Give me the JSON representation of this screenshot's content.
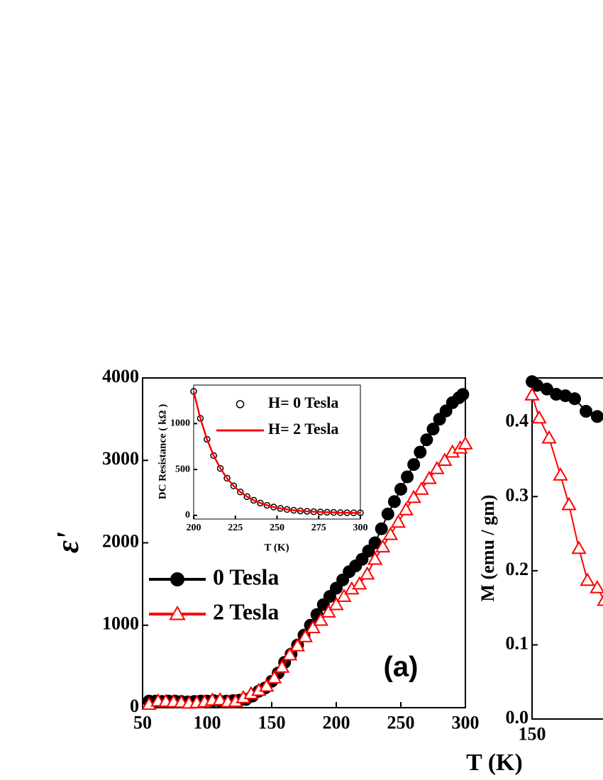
{
  "chart_data": [
    {
      "type": "line",
      "xlabel": "T (K)",
      "ylabel": "ε'",
      "annotation": "(a)",
      "xlim": [
        50,
        300
      ],
      "ylim": [
        0,
        4000
      ],
      "xticks": [
        50,
        100,
        150,
        200,
        250,
        300
      ],
      "yticks": [
        0,
        1000,
        2000,
        3000,
        4000
      ],
      "series": [
        {
          "name": "0 Tesla",
          "color": "#000000",
          "marker": "circle",
          "line": true,
          "x": [
            55,
            60,
            65,
            70,
            75,
            80,
            85,
            90,
            95,
            100,
            105,
            110,
            115,
            120,
            125,
            130,
            135,
            140,
            145,
            150,
            155,
            160,
            165,
            170,
            175,
            180,
            185,
            190,
            195,
            200,
            205,
            210,
            215,
            220,
            225,
            230,
            235,
            240,
            245,
            250,
            255,
            260,
            265,
            270,
            275,
            280,
            285,
            290,
            295,
            298
          ],
          "values": [
            80,
            80,
            75,
            80,
            80,
            75,
            70,
            75,
            80,
            80,
            85,
            80,
            80,
            85,
            90,
            100,
            140,
            200,
            240,
            320,
            420,
            550,
            650,
            760,
            880,
            1000,
            1130,
            1250,
            1350,
            1450,
            1550,
            1650,
            1720,
            1800,
            1900,
            2000,
            2170,
            2350,
            2500,
            2650,
            2800,
            2950,
            3100,
            3250,
            3380,
            3500,
            3600,
            3700,
            3760,
            3800
          ]
        },
        {
          "name": "2 Tesla",
          "color": "#ff0000",
          "marker": "triangle",
          "line": true,
          "x": [
            55,
            62,
            68,
            74,
            80,
            86,
            92,
            98,
            104,
            110,
            116,
            122,
            128,
            134,
            140,
            146,
            152,
            158,
            164,
            170,
            176,
            182,
            188,
            194,
            200,
            206,
            212,
            218,
            224,
            230,
            236,
            242,
            248,
            254,
            260,
            266,
            272,
            278,
            284,
            290,
            296,
            300
          ],
          "values": [
            40,
            80,
            75,
            70,
            65,
            55,
            60,
            70,
            90,
            95,
            70,
            75,
            120,
            170,
            210,
            260,
            360,
            490,
            640,
            750,
            860,
            970,
            1060,
            1160,
            1250,
            1350,
            1440,
            1500,
            1620,
            1800,
            1950,
            2100,
            2250,
            2400,
            2550,
            2650,
            2780,
            2900,
            3000,
            3100,
            3150,
            3200
          ]
        }
      ]
    },
    {
      "type": "line",
      "xlabel": "T (K)",
      "ylabel": "DC Resistance ( kΩ )",
      "xlim": [
        200,
        300
      ],
      "ylim": [
        -40,
        1420
      ],
      "xticks": [
        200,
        225,
        250,
        275,
        300
      ],
      "yticks": [
        0,
        500,
        1000
      ],
      "series": [
        {
          "name": "H= 0 Tesla",
          "color": "#000000",
          "marker": "open-circle",
          "line": false,
          "x": [
            200,
            204,
            208,
            212,
            216,
            220,
            224,
            228,
            232,
            236,
            240,
            244,
            248,
            252,
            256,
            260,
            264,
            268,
            272,
            276,
            280,
            284,
            288,
            292,
            296,
            300
          ],
          "values": [
            1350,
            1057,
            829,
            651,
            512,
            405,
            321,
            255,
            204,
            165,
            134,
            110,
            91,
            76,
            65,
            56,
            49,
            44,
            40,
            37,
            34,
            32,
            30,
            29,
            28,
            28
          ]
        },
        {
          "name": "H= 2 Tesla",
          "color": "#ff0000",
          "marker": "none",
          "line": true,
          "x": [
            200,
            204,
            208,
            212,
            216,
            220,
            224,
            228,
            232,
            236,
            240,
            244,
            248,
            252,
            256,
            260,
            264,
            268,
            272,
            276,
            280,
            284,
            288,
            292,
            296,
            300
          ],
          "values": [
            1350,
            1057,
            829,
            651,
            512,
            405,
            321,
            255,
            204,
            165,
            134,
            110,
            91,
            76,
            65,
            56,
            49,
            44,
            40,
            37,
            34,
            32,
            30,
            29,
            28,
            28
          ]
        }
      ]
    },
    {
      "type": "line",
      "ylabel": "M (emu / gm)",
      "xlim": [
        150,
        400
      ],
      "ylim": [
        0,
        0.46
      ],
      "xticks": [
        150
      ],
      "yticks": [
        {
          "value": 0,
          "label": "0.0"
        },
        0.1,
        0.2,
        0.3,
        0.4
      ],
      "series": [
        {
          "color": "#000000",
          "marker": "circle",
          "line": true,
          "x": [
            150,
            153.8,
            161.5,
            168.7,
            175.8,
            183,
            191.8,
            200.5
          ],
          "values": [
            0.455,
            0.45,
            0.445,
            0.438,
            0.436,
            0.432,
            0.415,
            0.408
          ]
        },
        {
          "color": "#ff0000",
          "marker": "triangle",
          "line": true,
          "x": [
            150,
            155.5,
            163.2,
            172,
            178.6,
            186.3,
            192.9,
            200.5,
            206
          ],
          "values": [
            0.437,
            0.406,
            0.379,
            0.329,
            0.289,
            0.23,
            0.187,
            0.177,
            0.16
          ]
        }
      ]
    }
  ]
}
